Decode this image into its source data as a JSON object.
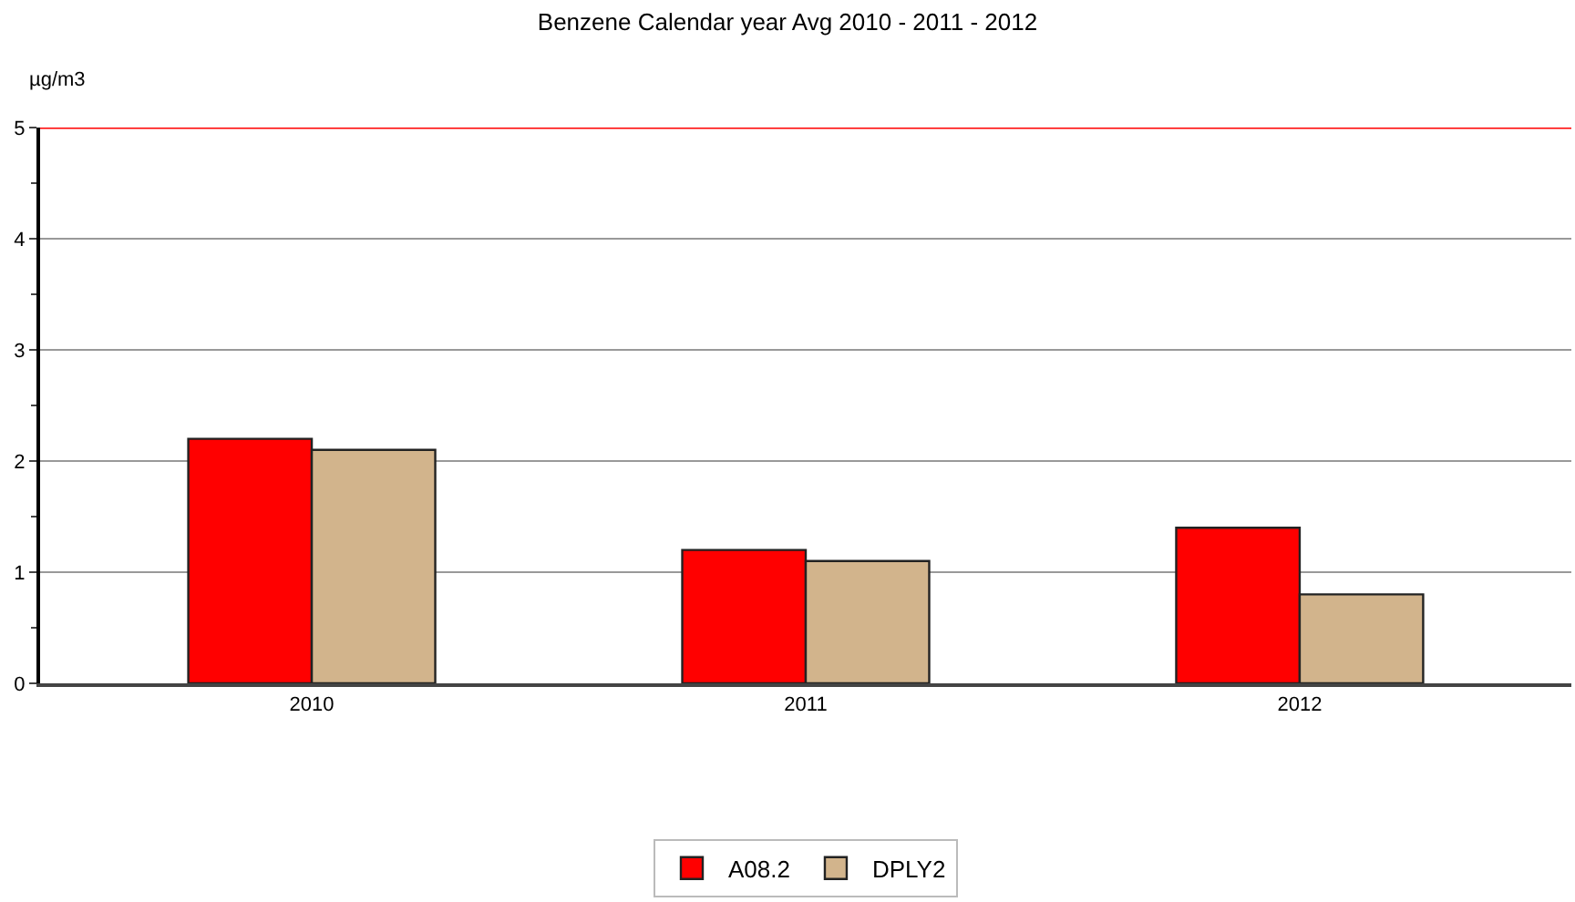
{
  "chart_data": {
    "type": "bar",
    "title": "Benzene Calendar year Avg 2010 - 2011 - 2012",
    "ylabel": "µg/m3",
    "categories": [
      "2010",
      "2011",
      "2012"
    ],
    "series": [
      {
        "name": "A08.2",
        "color": "#ff0000",
        "values": [
          2.2,
          1.2,
          1.4
        ]
      },
      {
        "name": "DPLY2",
        "color": "#d2b48c",
        "values": [
          2.1,
          1.1,
          0.8
        ]
      }
    ],
    "ylim": [
      0,
      5
    ],
    "yticks": [
      0,
      1,
      2,
      3,
      4,
      5
    ],
    "grid": "y",
    "legend": "bottom",
    "ref_lines": [
      {
        "axis": "y",
        "value": 5,
        "color": "#ff0000"
      }
    ]
  }
}
